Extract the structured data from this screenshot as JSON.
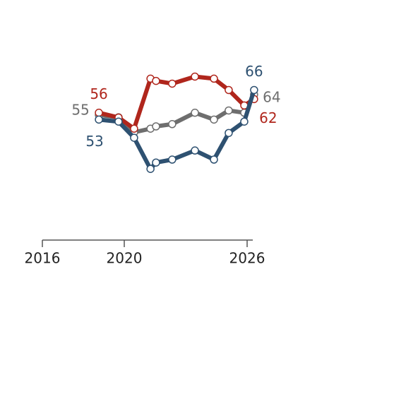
{
  "chart_data": {
    "type": "line",
    "x": [
      2018.76,
      2019.72,
      2020.48,
      2021.28,
      2021.55,
      2022.34,
      2023.45,
      2024.38,
      2025.1,
      2025.86,
      2026.34
    ],
    "xlim": [
      2016,
      2026.4
    ],
    "xticks": [
      2016,
      2020,
      2026
    ],
    "ylim": [
      0,
      100
    ],
    "series": [
      {
        "name": null,
        "color": "#6e6e6e",
        "values": [
          55,
          54,
          47.4,
          49,
          50,
          51,
          56,
          53,
          57,
          56,
          64
        ]
      },
      {
        "name": null,
        "color": "#b0261c",
        "values": [
          56,
          53.9,
          49,
          71,
          70,
          68.8,
          71.9,
          71,
          66,
          59.2,
          62
        ]
      },
      {
        "name": null,
        "color": "#2e5171",
        "values": [
          53,
          52.1,
          45,
          31.3,
          34.1,
          35.4,
          39.4,
          35.4,
          47.1,
          52.1,
          66
        ]
      }
    ]
  }
}
